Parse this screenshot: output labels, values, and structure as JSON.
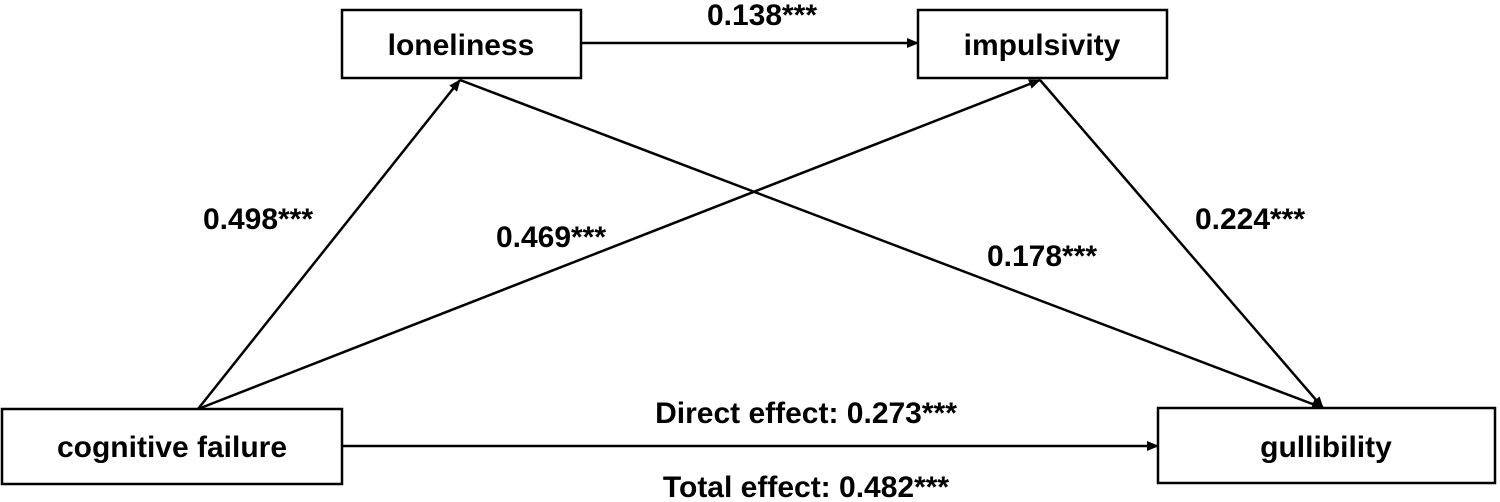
{
  "diagram": {
    "nodes": {
      "loneliness": "loneliness",
      "impulsivity": "impulsivity",
      "cognitive_failure": "cognitive failure",
      "gullibility": "gullibility"
    },
    "paths": {
      "loneliness_to_impulsivity": "0.138***",
      "cognitive_failure_to_loneliness": "0.498***",
      "cognitive_failure_to_impulsivity": "0.469***",
      "loneliness_to_gullibility": "0.178***",
      "impulsivity_to_gullibility": "0.224***",
      "direct_effect": "Direct effect: 0.273***",
      "total_effect": "Total effect: 0.482***"
    },
    "colors": {
      "line": "#000000",
      "box_fill": "#ffffff"
    }
  }
}
